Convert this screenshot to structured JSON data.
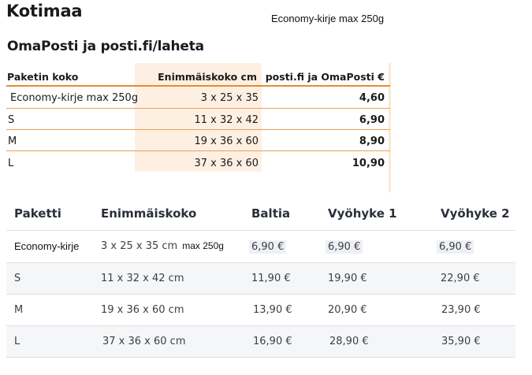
{
  "page": {
    "title": "Kotimaa",
    "note": "Economy-kirje max 250g",
    "subtitle": "OmaPosti ja posti.fi/laheta"
  },
  "table1": {
    "headers": [
      "Paketin koko",
      "Enimmäiskoko cm",
      "posti.fi ja OmaPosti €"
    ],
    "rows": [
      {
        "name": "Economy-kirje max 250g",
        "size": "3 x 25 x 35",
        "price": "4,60"
      },
      {
        "name": "S",
        "size": "11 x 32 x 42",
        "price": "6,90"
      },
      {
        "name": "M",
        "size": "19 x 36 x 60",
        "price": "8,90"
      },
      {
        "name": "L",
        "size": "37 x 36 x 60",
        "price": "10,90"
      }
    ]
  },
  "table2": {
    "headers": [
      "Paketti",
      "Enimmäiskoko",
      "Baltia",
      "Vyöhyke 1",
      "Vyöhyke 2"
    ],
    "rows": [
      {
        "name": "Economy-kirje",
        "size": "3 x 25 x 35 cm",
        "size_note": "max 250g",
        "baltia": "6,90 €",
        "zone1": "6,90 €",
        "zone2": "6,90 €"
      },
      {
        "name": "S",
        "size": "11 x 32 x 42 cm",
        "baltia": "11,90 €",
        "zone1": "19,90 €",
        "zone2": "22,90 €"
      },
      {
        "name": "M",
        "size": "19 x 36 x 60 cm",
        "baltia": "13,90 €",
        "zone1": "20,90 €",
        "zone2": "23,90 €"
      },
      {
        "name": "L",
        "size": "37 x 36 x 60 cm",
        "baltia": "16,90 €",
        "zone1": "28,90 €",
        "zone2": "35,90 €"
      }
    ]
  }
}
